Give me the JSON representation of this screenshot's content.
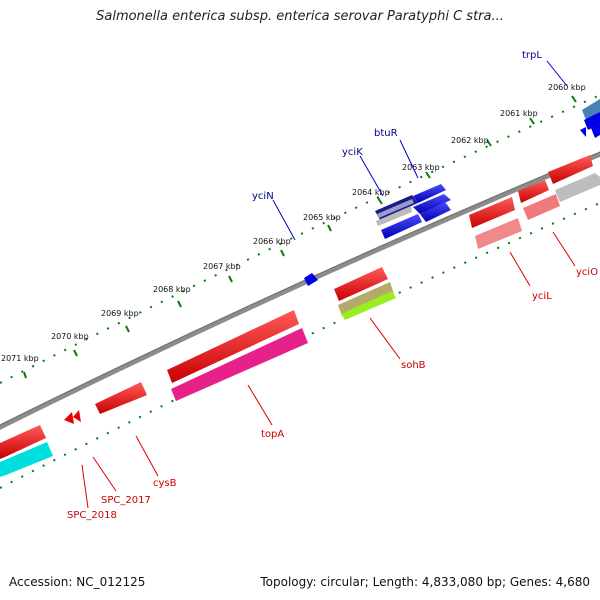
{
  "title": "Salmonella enterica subsp. enterica serovar Paratyphi C stra...",
  "footer": {
    "accession": "Accession: NC_012125",
    "summary": "Topology: circular; Length: 4,833,080 bp; Genes: 4,680"
  },
  "ticks": [
    "2060 kbp",
    "2061 kbp",
    "2062 kbp",
    "2063 kbp",
    "2064 kbp",
    "2065 kbp",
    "2066 kbp",
    "2067 kbp",
    "2068 kbp",
    "2069 kbp",
    "2070 kbp",
    "2071 kbp"
  ],
  "genes_upper": [
    "trpL",
    "btuR",
    "yciK",
    "yciN"
  ],
  "genes_lower": [
    "yciO",
    "yciL",
    "sohB",
    "topA",
    "cysB",
    "SPC_2017",
    "SPC_2018"
  ],
  "colors": {
    "forward_cds": "#0000ee",
    "reverse_cds": "#ee0000",
    "rna": "#ee1493",
    "backbone": "#777777",
    "tick": "#006600",
    "upper_label": "#00008b",
    "lower_label": "#cc0000"
  }
}
